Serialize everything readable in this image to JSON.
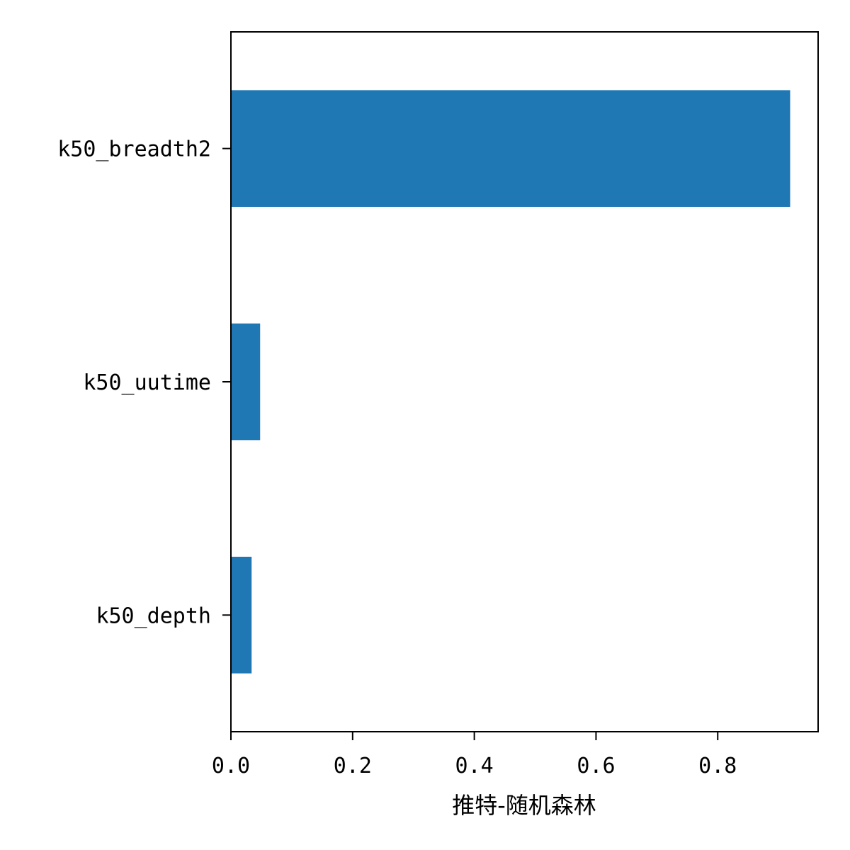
{
  "chart_data": {
    "type": "bar",
    "orientation": "horizontal",
    "categories": [
      "k50_breadth2",
      "k50_uutime",
      "k50_depth"
    ],
    "values": [
      0.919,
      0.048,
      0.034
    ],
    "title": "",
    "xlabel": "推特-随机森林",
    "ylabel": "",
    "xlim": [
      0,
      0.965
    ],
    "xticks": [
      0.0,
      0.2,
      0.4,
      0.6,
      0.8
    ],
    "xtick_labels": [
      "0.0",
      "0.2",
      "0.4",
      "0.6",
      "0.8"
    ],
    "grid": false,
    "legend": "none",
    "bar_color": "#1f77b4"
  }
}
